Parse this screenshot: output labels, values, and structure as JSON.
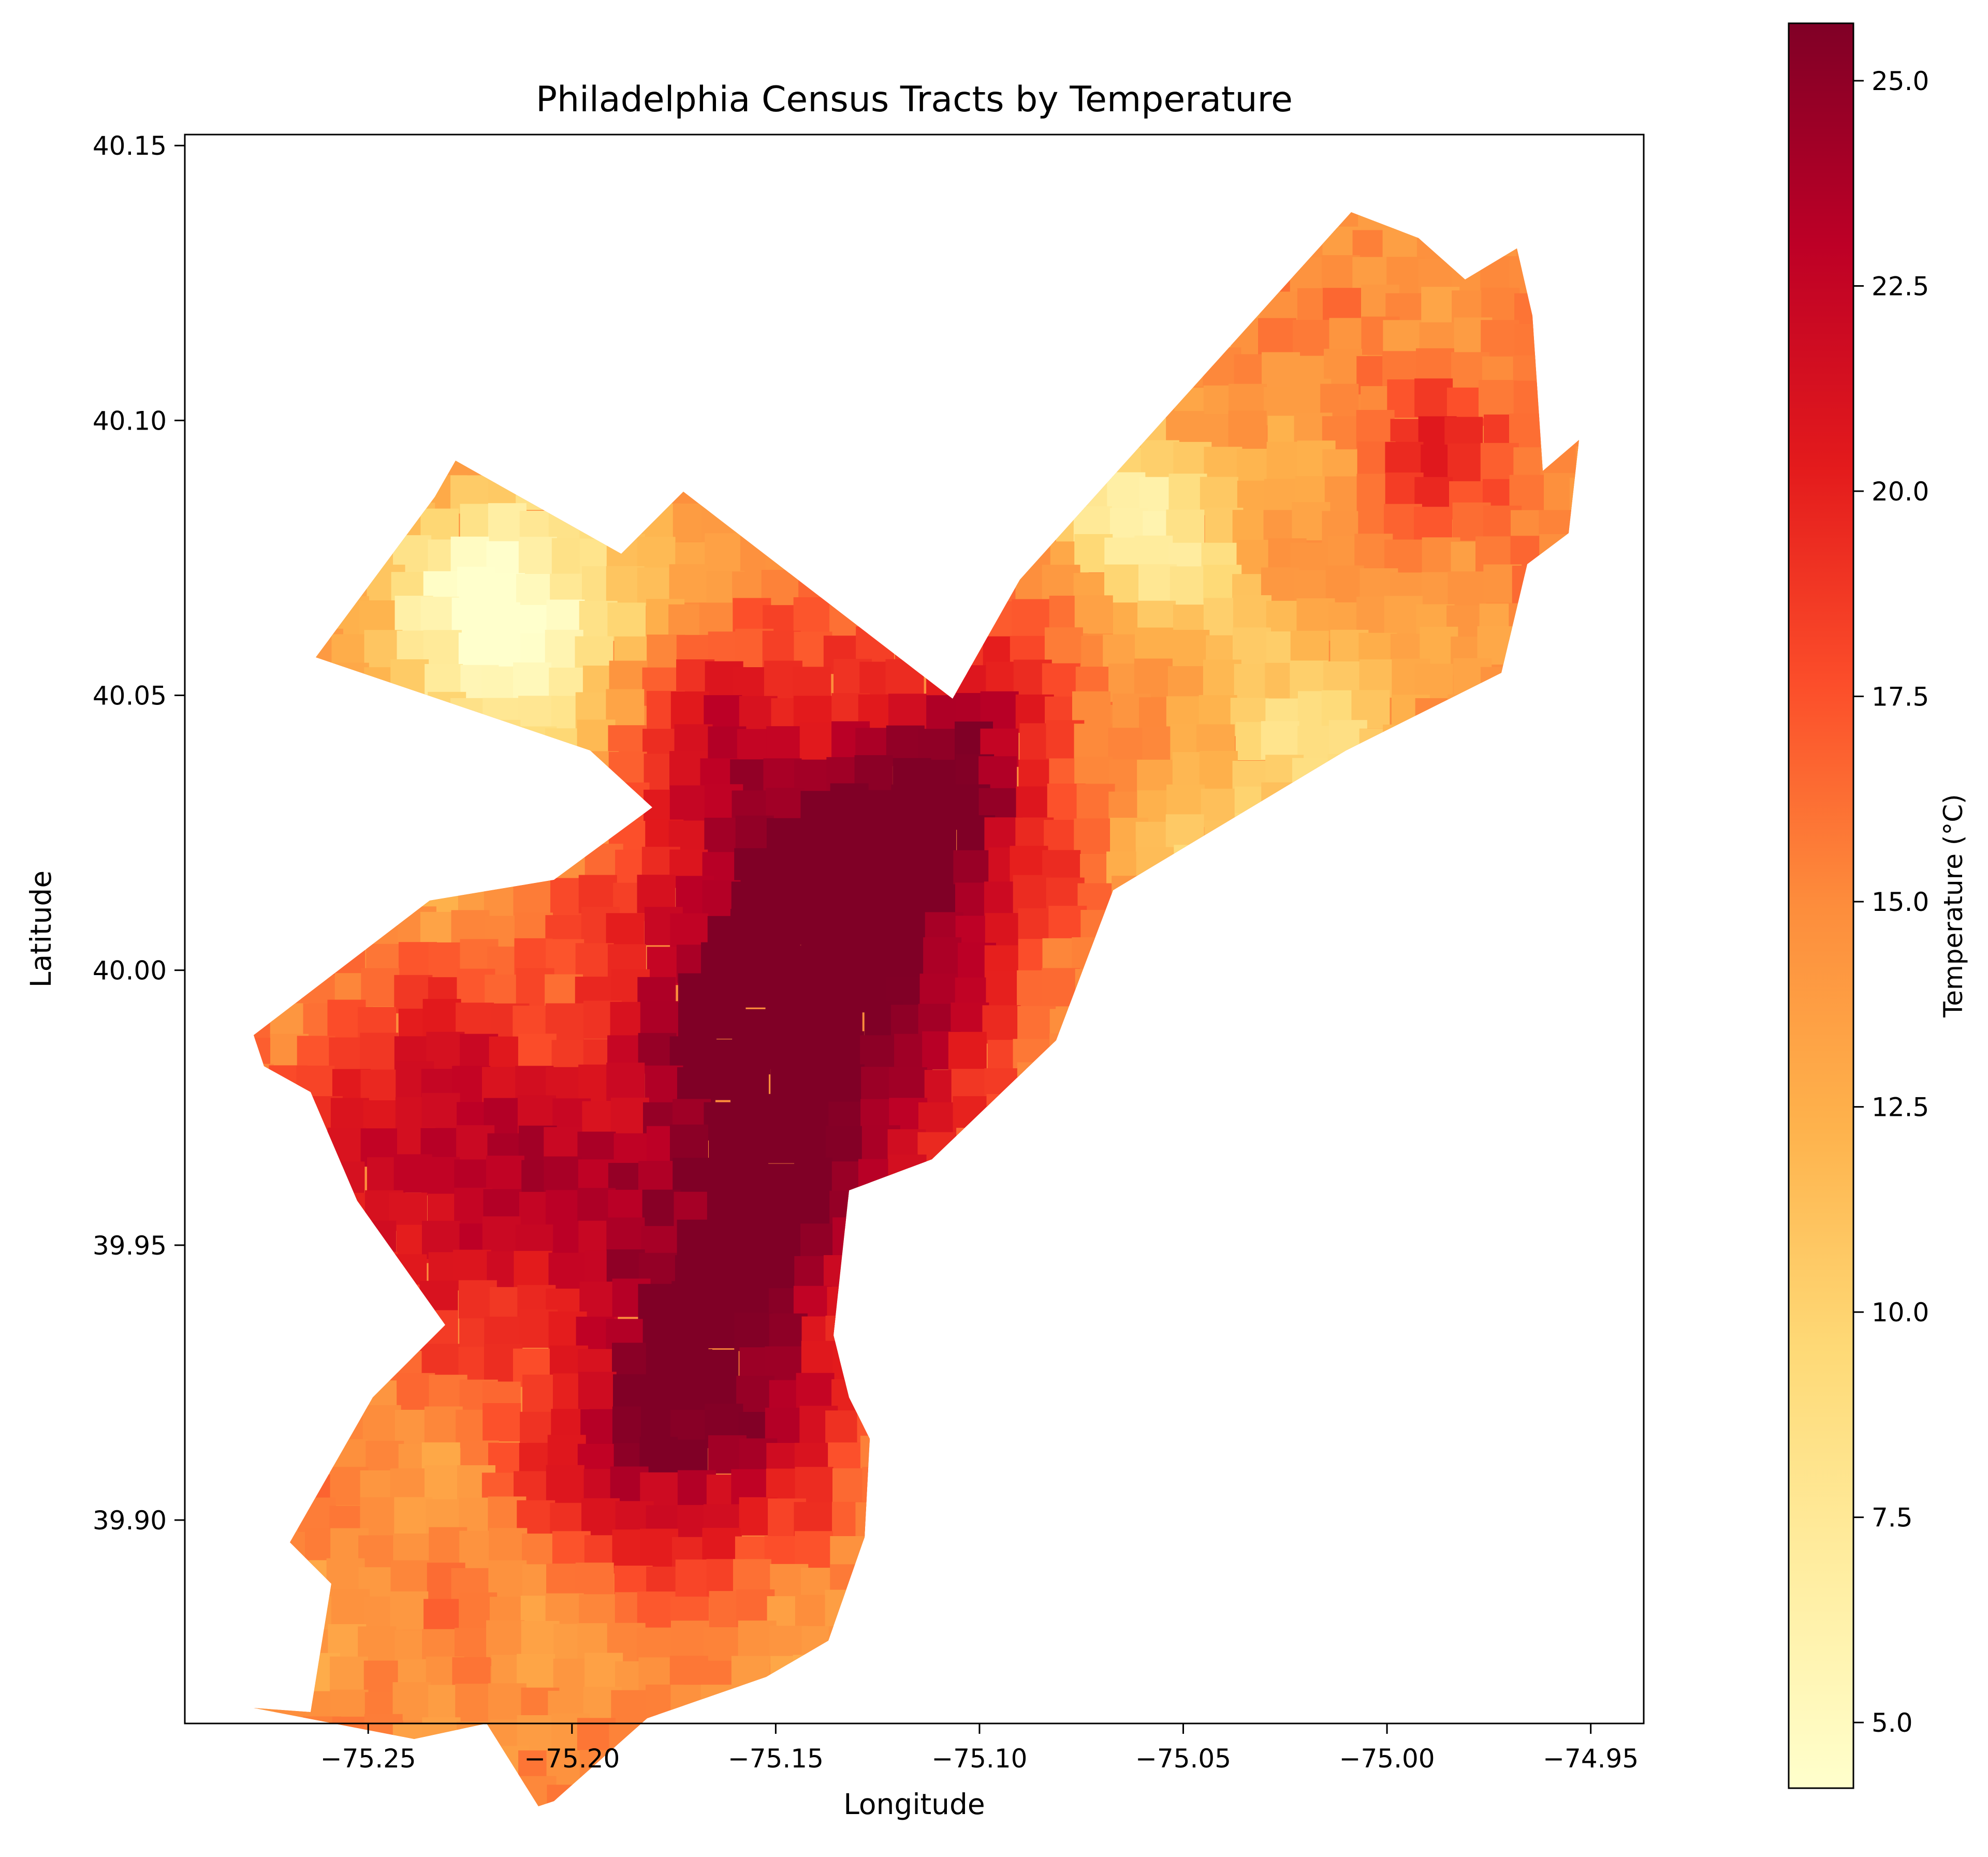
{
  "chart_data": {
    "type": "choropleth",
    "title": "Philadelphia Census Tracts by Temperature",
    "xlabel": "Longitude",
    "ylabel": "Latitude",
    "xlim": [
      -75.295,
      -74.937
    ],
    "ylim": [
      39.863,
      40.152
    ],
    "xticks": [
      -75.25,
      -75.2,
      -75.15,
      -75.1,
      -75.05,
      -75.0,
      -74.95
    ],
    "xtick_labels": [
      "−75.25",
      "−75.20",
      "−75.15",
      "−75.10",
      "−75.05",
      "−75.00",
      "−74.95"
    ],
    "yticks": [
      39.9,
      39.95,
      40.0,
      40.05,
      40.1,
      40.15
    ],
    "ytick_labels": [
      "39.90",
      "39.95",
      "40.00",
      "40.05",
      "40.10",
      "40.15"
    ],
    "colorbar": {
      "label": "Temperature (°C)",
      "range": [
        4.2,
        25.7
      ],
      "ticks": [
        5.0,
        7.5,
        10.0,
        12.5,
        15.0,
        17.5,
        20.0,
        22.5,
        25.0
      ],
      "tick_labels": [
        "5.0",
        "7.5",
        "10.0",
        "12.5",
        "15.0",
        "17.5",
        "20.0",
        "22.5",
        "25.0"
      ],
      "colormap": "YlOrRd",
      "stops": [
        "#ffffcc",
        "#ffeda0",
        "#fed976",
        "#feb24c",
        "#fd8d3c",
        "#fc4e2a",
        "#e31a1c",
        "#bd0026",
        "#800026"
      ]
    },
    "grid": false
  }
}
